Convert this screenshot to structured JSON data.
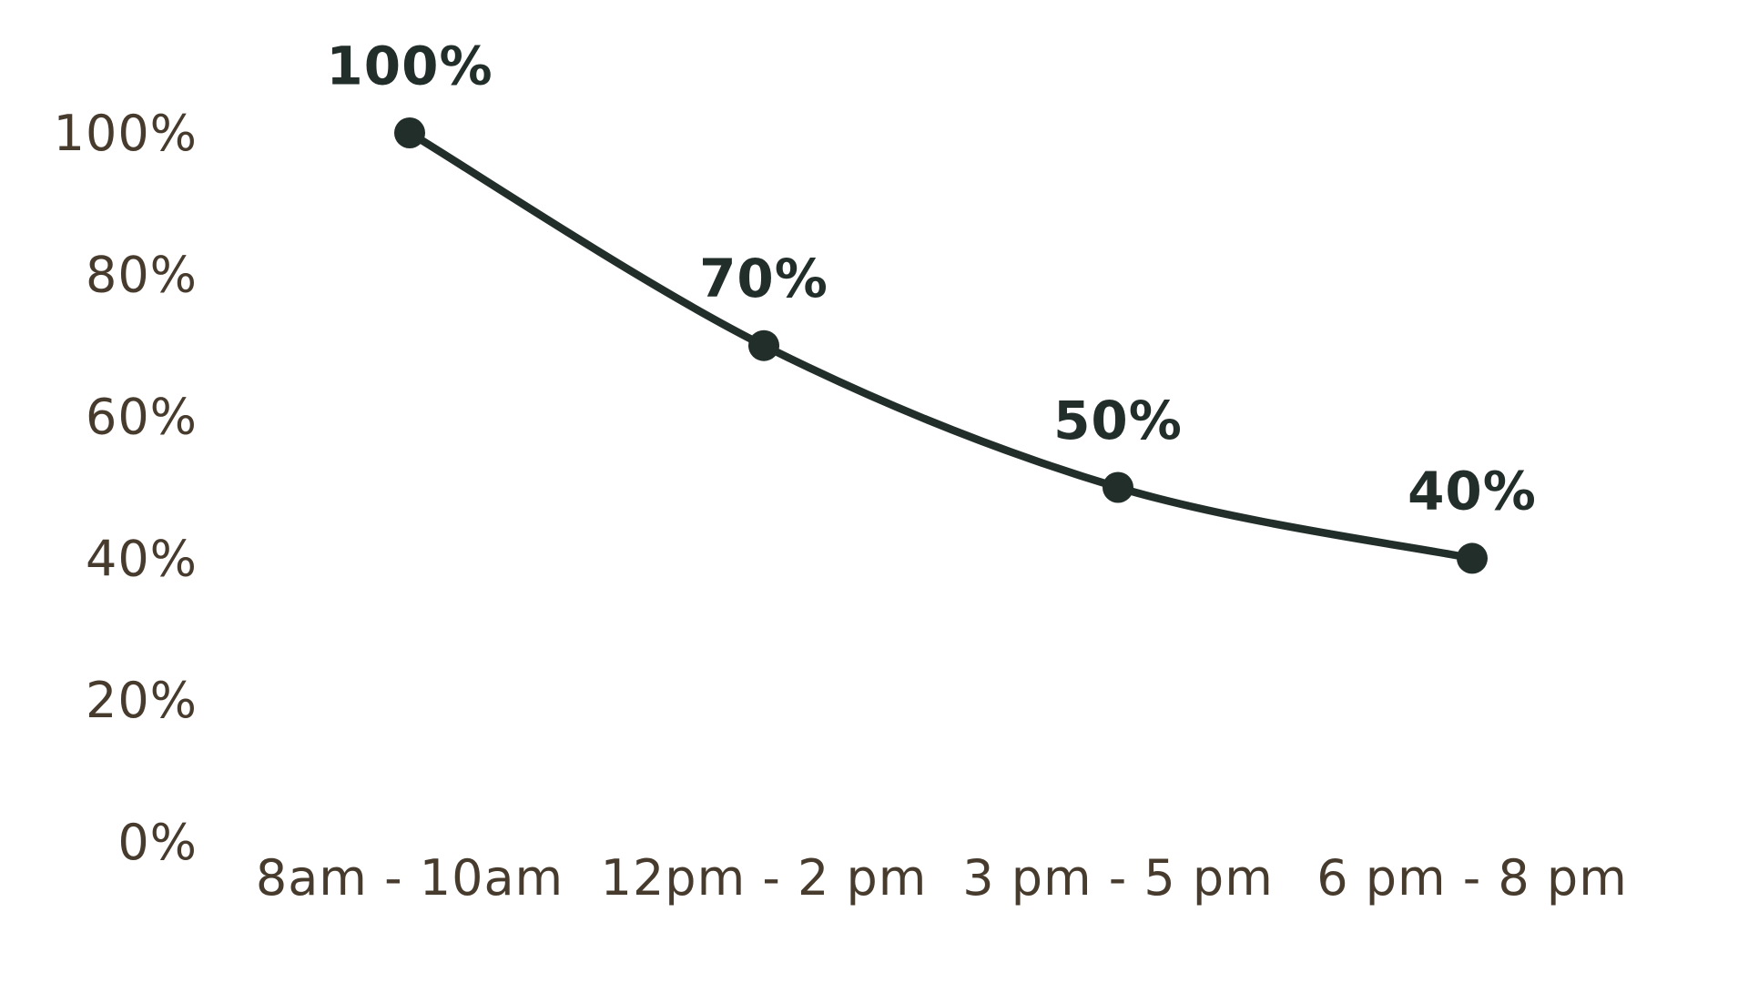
{
  "chart_data": {
    "type": "line",
    "title": "",
    "categories": [
      "8am - 10am",
      "12pm - 2 pm",
      "3 pm - 5 pm",
      "6 pm - 8 pm"
    ],
    "values": [
      100,
      70,
      50,
      40
    ],
    "point_labels": [
      "100%",
      "70%",
      "50%",
      "40%"
    ],
    "y_ticks": [
      {
        "label": "100%",
        "value": 100
      },
      {
        "label": "80%",
        "value": 80
      },
      {
        "label": "60%",
        "value": 60
      },
      {
        "label": "40%",
        "value": 40
      },
      {
        "label": "20%",
        "value": 20
      },
      {
        "label": "0%",
        "value": 0
      }
    ],
    "ylim": [
      0,
      100
    ],
    "grid": false,
    "legend": false,
    "axes_lines": false,
    "colors": {
      "line": "#222e2a",
      "marker": "#222e2a",
      "point_label": "#222e2a",
      "axis_label": "#473b2e",
      "background": "#ffffff"
    }
  }
}
